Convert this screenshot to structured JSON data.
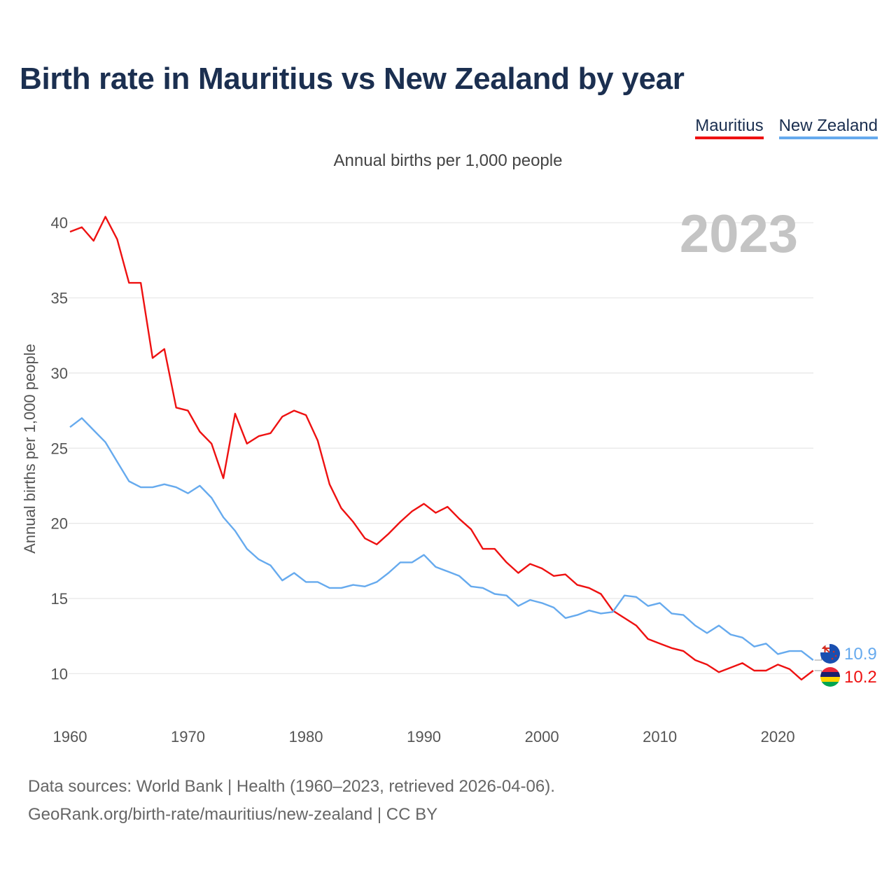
{
  "title": "Birth rate in Mauritius vs New Zealand by year",
  "subtitle": "Annual births per 1,000 people",
  "legend": [
    {
      "label": "Mauritius",
      "color": "#ee1111"
    },
    {
      "label": "New Zealand",
      "color": "#66aaee"
    }
  ],
  "footer": {
    "line1": "Data sources: World Bank | Health (1960–2023, retrieved 2026-04-06).",
    "line2": "GeoRank.org/birth-rate/mauritius/new-zealand | CC BY"
  },
  "chart_data": {
    "type": "line",
    "title": "Birth rate in Mauritius vs New Zealand by year",
    "xlabel": "",
    "ylabel": "Annual births per 1,000 people",
    "year_watermark": "2023",
    "x": [
      1960,
      1961,
      1962,
      1963,
      1964,
      1965,
      1966,
      1967,
      1968,
      1969,
      1970,
      1971,
      1972,
      1973,
      1974,
      1975,
      1976,
      1977,
      1978,
      1979,
      1980,
      1981,
      1982,
      1983,
      1984,
      1985,
      1986,
      1987,
      1988,
      1989,
      1990,
      1991,
      1992,
      1993,
      1994,
      1995,
      1996,
      1997,
      1998,
      1999,
      2000,
      2001,
      2002,
      2003,
      2004,
      2005,
      2006,
      2007,
      2008,
      2009,
      2010,
      2011,
      2012,
      2013,
      2014,
      2015,
      2016,
      2017,
      2018,
      2019,
      2020,
      2021,
      2022,
      2023
    ],
    "xlim": [
      1960,
      2024.5
    ],
    "ylim": [
      7.5,
      41.5
    ],
    "x_ticks": [
      1960,
      1970,
      1980,
      1990,
      2000,
      2010,
      2020
    ],
    "y_ticks": [
      10,
      15,
      20,
      25,
      30,
      35,
      40
    ],
    "grid": true,
    "legend_position": "top-right",
    "series": [
      {
        "name": "Mauritius",
        "color": "#ee1111",
        "end_label": "10.2",
        "values": [
          39.4,
          39.7,
          38.8,
          40.4,
          38.9,
          36.0,
          36.0,
          31.0,
          31.6,
          27.7,
          27.5,
          26.1,
          25.3,
          23.0,
          27.3,
          25.3,
          25.8,
          26.0,
          27.1,
          27.5,
          27.2,
          25.5,
          22.6,
          21.0,
          20.1,
          19.0,
          18.6,
          19.3,
          20.1,
          20.8,
          21.3,
          20.7,
          21.1,
          20.3,
          19.6,
          18.3,
          18.3,
          17.4,
          16.7,
          17.3,
          17.0,
          16.5,
          16.6,
          15.9,
          15.7,
          15.3,
          14.2,
          13.7,
          13.2,
          12.3,
          12.0,
          11.7,
          11.5,
          10.9,
          10.6,
          10.1,
          10.4,
          10.7,
          10.2,
          10.2,
          10.6,
          10.3,
          9.6,
          10.2
        ]
      },
      {
        "name": "New Zealand",
        "color": "#66aaee",
        "end_label": "10.9",
        "values": [
          26.4,
          27.0,
          26.2,
          25.4,
          24.1,
          22.8,
          22.4,
          22.4,
          22.6,
          22.4,
          22.0,
          22.5,
          21.7,
          20.4,
          19.5,
          18.3,
          17.6,
          17.2,
          16.2,
          16.7,
          16.1,
          16.1,
          15.7,
          15.7,
          15.9,
          15.8,
          16.1,
          16.7,
          17.4,
          17.4,
          17.9,
          17.1,
          16.8,
          16.5,
          15.8,
          15.7,
          15.3,
          15.2,
          14.5,
          14.9,
          14.7,
          14.4,
          13.7,
          13.9,
          14.2,
          14.0,
          14.1,
          15.2,
          15.1,
          14.5,
          14.7,
          14.0,
          13.9,
          13.2,
          12.7,
          13.2,
          12.6,
          12.4,
          11.8,
          12.0,
          11.3,
          11.5,
          11.5,
          10.9
        ]
      }
    ]
  }
}
